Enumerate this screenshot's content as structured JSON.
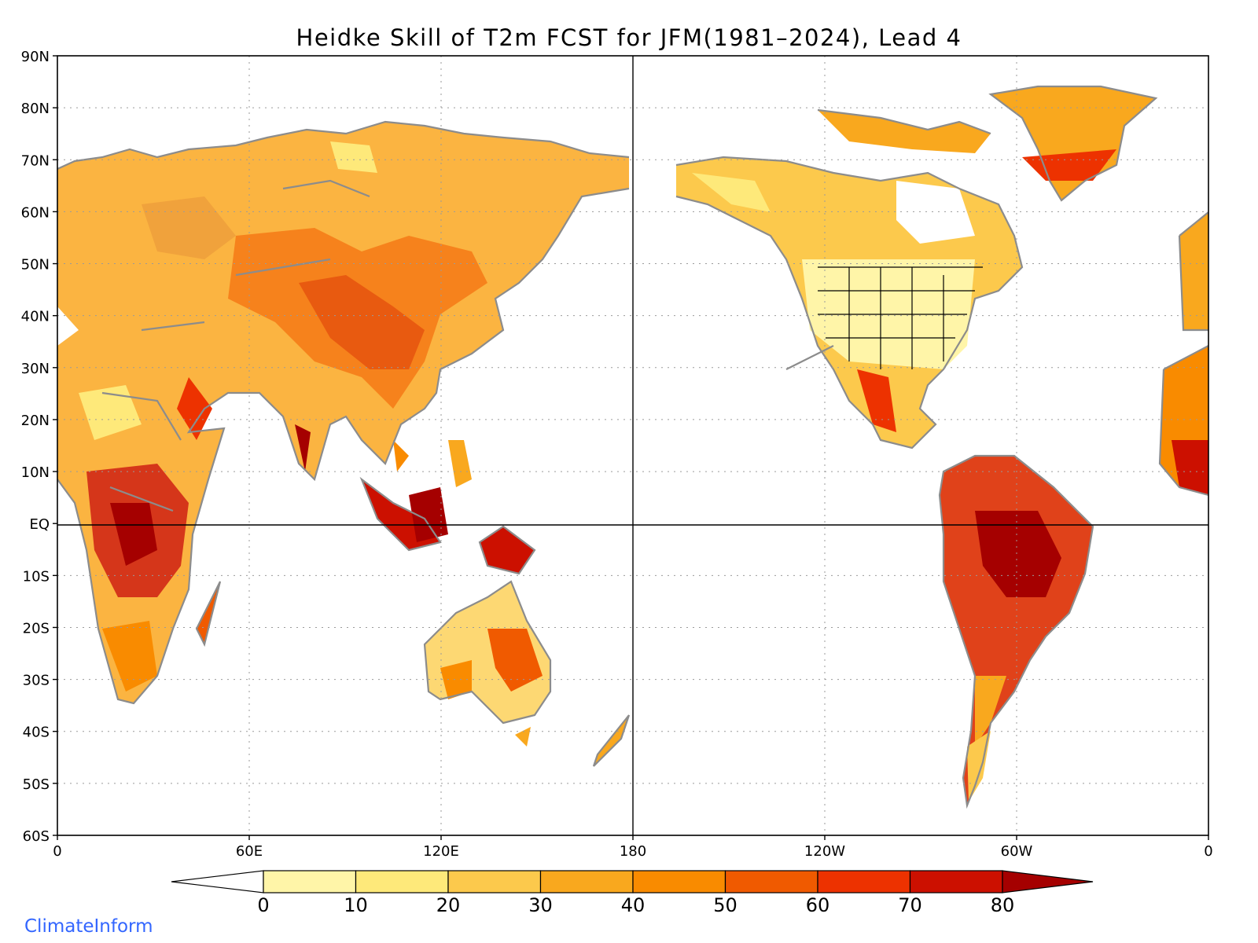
{
  "title": "Heidke Skill of T2m FCST for JFM(1981–2024), Lead 4",
  "lat_labels": [
    "90N",
    "80N",
    "70N",
    "60N",
    "50N",
    "40N",
    "30N",
    "20N",
    "10N",
    "EQ",
    "10S",
    "20S",
    "30S",
    "40S",
    "50S",
    "60S"
  ],
  "lon_labels": [
    "0",
    "60E",
    "120E",
    "180",
    "120W",
    "60W",
    "0"
  ],
  "colorbar": {
    "labels": [
      "0",
      "10",
      "20",
      "30",
      "40",
      "50",
      "60",
      "70",
      "80"
    ],
    "colors": [
      "#fff5a8",
      "#fee97a",
      "#fcc94c",
      "#f9a81e",
      "#f98b00",
      "#f05a00",
      "#ed3200",
      "#cc1000",
      "#a50000"
    ],
    "under_color": "#ffffff",
    "over_color": "#a50000"
  },
  "map_style": {
    "coast_color": "#8c8c8c",
    "border_color": "#8c8c8c",
    "grid_color": "#9a9a9a"
  },
  "watermark": "ClimateInform"
}
